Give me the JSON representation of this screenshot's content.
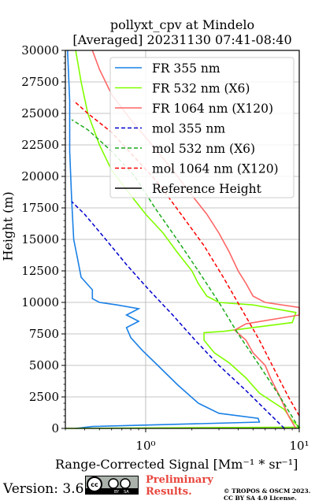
{
  "title_line1": "pollyxt_cpv at Mindelo",
  "title_line2": "[Averaged] 20231130 07:41-08:40",
  "footer": {
    "version": "Version: 3.6",
    "cc_badge": "cc BY SA",
    "preliminary": "Preliminary Results.",
    "copyright": "© TROPOS & OSCM 2023. CC BY SA 4.0 License."
  },
  "chart_data": {
    "type": "line",
    "xlabel": "Range-Corrected Signal [Mm⁻¹ * sr⁻¹]",
    "ylabel": "Height (m)",
    "xscale": "log",
    "xlim": [
      0.3,
      10
    ],
    "ylim": [
      0,
      30000
    ],
    "x_ticks": [
      "10⁰",
      "10¹"
    ],
    "y_ticks": [
      0,
      2500,
      5000,
      7500,
      10000,
      12500,
      15000,
      17500,
      20000,
      22500,
      25000,
      27500,
      30000
    ],
    "grid": true,
    "legend_position": "top-right",
    "colors": {
      "fr355": "#1a80e6",
      "fr532": "#80ff00",
      "fr1064": "#ff6666",
      "mol355": "#0000cc",
      "mol532": "#1aaa1a",
      "mol1064": "#ff0000",
      "ref": "#000000"
    },
    "series": [
      {
        "name": "FR 355 nm",
        "key": "fr355",
        "style": "solid",
        "points": [
          [
            0.35,
            0
          ],
          [
            0.45,
            150
          ],
          [
            5.5,
            500
          ],
          [
            5.4,
            800
          ],
          [
            3.0,
            1200
          ],
          [
            2.2,
            2000
          ],
          [
            1.6,
            3500
          ],
          [
            1.2,
            5000
          ],
          [
            0.95,
            6200
          ],
          [
            0.8,
            7200
          ],
          [
            0.75,
            8000
          ],
          [
            0.9,
            8500
          ],
          [
            0.75,
            9000
          ],
          [
            0.9,
            9500
          ],
          [
            0.65,
            9800
          ],
          [
            0.5,
            10000
          ],
          [
            0.45,
            10300
          ],
          [
            0.45,
            11000
          ],
          [
            0.38,
            12000
          ],
          [
            0.36,
            13500
          ],
          [
            0.34,
            15000
          ],
          [
            0.33,
            18000
          ],
          [
            0.32,
            22000
          ],
          [
            0.32,
            26000
          ],
          [
            0.31,
            30000
          ]
        ]
      },
      {
        "name": "FR 532 nm (X6)",
        "key": "fr532",
        "style": "solid",
        "points": [
          [
            0.3,
            0
          ],
          [
            10,
            100
          ],
          [
            9.0,
            600
          ],
          [
            8.0,
            1500
          ],
          [
            5.5,
            2800
          ],
          [
            4.5,
            4000
          ],
          [
            3.5,
            5200
          ],
          [
            2.8,
            6000
          ],
          [
            2.4,
            7000
          ],
          [
            2.4,
            7600
          ],
          [
            3.2,
            7700
          ],
          [
            9.0,
            8400
          ],
          [
            9.5,
            9200
          ],
          [
            5.0,
            9800
          ],
          [
            3.0,
            10000
          ],
          [
            2.5,
            10500
          ],
          [
            2.2,
            11500
          ],
          [
            2.0,
            12500
          ],
          [
            1.6,
            14000
          ],
          [
            1.3,
            15500
          ],
          [
            1.0,
            17000
          ],
          [
            0.8,
            18500
          ],
          [
            0.6,
            20500
          ],
          [
            0.5,
            22500
          ],
          [
            0.42,
            25000
          ],
          [
            0.38,
            27500
          ],
          [
            0.35,
            30000
          ]
        ]
      },
      {
        "name": "FR 1064 nm (X120)",
        "key": "fr1064",
        "style": "solid",
        "points": [
          [
            9.5,
            0
          ],
          [
            8.5,
            1000
          ],
          [
            7.5,
            2500
          ],
          [
            6.5,
            4000
          ],
          [
            6.0,
            5000
          ],
          [
            5.0,
            6000
          ],
          [
            4.5,
            7000
          ],
          [
            3.8,
            7800
          ],
          [
            4.5,
            8300
          ],
          [
            10,
            9000
          ],
          [
            10,
            9600
          ],
          [
            6.0,
            10000
          ],
          [
            5.0,
            10500
          ],
          [
            4.5,
            11500
          ],
          [
            4.0,
            12500
          ],
          [
            3.5,
            14000
          ],
          [
            3.0,
            15500
          ],
          [
            2.5,
            17000
          ],
          [
            2.0,
            18500
          ],
          [
            1.5,
            20500
          ],
          [
            1.1,
            22500
          ],
          [
            0.8,
            24500
          ],
          [
            0.6,
            26500
          ],
          [
            0.5,
            28500
          ],
          [
            0.45,
            30000
          ]
        ]
      },
      {
        "name": "mol 355 nm",
        "key": "mol355",
        "style": "dashed",
        "points": [
          [
            8.0,
            0
          ],
          [
            6.0,
            1500
          ],
          [
            4.5,
            3000
          ],
          [
            3.0,
            5000
          ],
          [
            2.1,
            7000
          ],
          [
            1.5,
            9000
          ],
          [
            1.05,
            11000
          ],
          [
            0.75,
            13000
          ],
          [
            0.55,
            15000
          ],
          [
            0.4,
            17000
          ],
          [
            0.33,
            18000
          ]
        ]
      },
      {
        "name": "mol 532 nm (X6)",
        "key": "mol532",
        "style": "dashed",
        "points": [
          [
            10,
            0
          ],
          [
            7.5,
            2500
          ],
          [
            5.5,
            5000
          ],
          [
            4.0,
            7500
          ],
          [
            3.0,
            10000
          ],
          [
            2.2,
            12500
          ],
          [
            1.6,
            15000
          ],
          [
            1.15,
            17500
          ],
          [
            0.85,
            20000
          ],
          [
            0.6,
            22000
          ],
          [
            0.42,
            23700
          ],
          [
            0.33,
            24500
          ]
        ]
      },
      {
        "name": "mol 1064 nm (X120)",
        "key": "mol1064",
        "style": "dashed",
        "points": [
          [
            10,
            1000
          ],
          [
            8.5,
            2500
          ],
          [
            7.0,
            4500
          ],
          [
            5.5,
            7000
          ],
          [
            4.2,
            9500
          ],
          [
            3.2,
            12000
          ],
          [
            2.4,
            14500
          ],
          [
            1.7,
            17000
          ],
          [
            1.2,
            19500
          ],
          [
            0.85,
            21500
          ],
          [
            0.6,
            23500
          ],
          [
            0.42,
            25000
          ],
          [
            0.34,
            26000
          ]
        ]
      },
      {
        "name": "Reference Height",
        "key": "ref",
        "style": "solid",
        "points": []
      }
    ]
  }
}
